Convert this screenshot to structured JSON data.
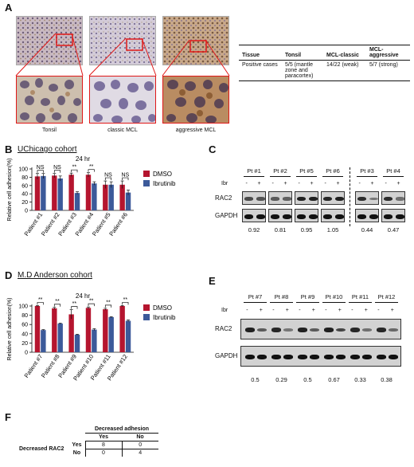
{
  "panels": {
    "a": "A",
    "b": "B",
    "c": "C",
    "d": "D",
    "e": "E",
    "f": "F"
  },
  "panel_a": {
    "images": [
      {
        "caption": "Tonsil"
      },
      {
        "caption": "classic MCL"
      },
      {
        "caption": "aggressive MCL"
      }
    ],
    "table": {
      "headers": [
        "Tissue",
        "Tonsil",
        "MCL-classic",
        "MCL-aggressive"
      ],
      "rows": [
        {
          "label": "Positive cases",
          "tonsil": "5/5 (mantle zone and paracortex)",
          "classic": "14/22 (weak)",
          "aggressive": "5/7 (strong)"
        }
      ]
    }
  },
  "chart_data": [
    {
      "type": "bar",
      "title": "UChicago cohort",
      "subtitle": "24 hr",
      "ylabel": "Relative cell adhesion(%)",
      "ylim": [
        0,
        100
      ],
      "yticks": [
        0,
        20,
        40,
        60,
        80,
        100
      ],
      "categories": [
        "Patient #1",
        "Patient #2",
        "Patient #3",
        "Patient #4",
        "Patient #5",
        "Patient #6"
      ],
      "series": [
        {
          "name": "DMSO",
          "color": "#b5152f",
          "values": [
            82,
            84,
            86,
            86,
            62,
            62
          ],
          "errors": [
            7,
            5,
            4,
            5,
            9,
            9
          ]
        },
        {
          "name": "Ibrutinib",
          "color": "#3c5a9a",
          "values": [
            83,
            77,
            42,
            65,
            62,
            43
          ],
          "errors": [
            6,
            6,
            3,
            4,
            7,
            6
          ]
        }
      ],
      "significance": [
        "NS",
        "NS",
        "**",
        "**",
        "NS",
        "NS"
      ],
      "legend": "right"
    },
    {
      "type": "bar",
      "title": "M.D Anderson cohort",
      "subtitle": "24 hr",
      "ylabel": "Relative cell adhesion(%)",
      "ylim": [
        0,
        100
      ],
      "yticks": [
        0,
        20,
        40,
        60,
        80,
        100
      ],
      "categories": [
        "Patient #7",
        "Patient #8",
        "Patient #9",
        "Patient #10",
        "Patient #11",
        "Patient #12"
      ],
      "series": [
        {
          "name": "DMSO",
          "color": "#b5152f",
          "values": [
            100,
            95,
            82,
            96,
            93,
            100
          ],
          "errors": [
            1,
            2,
            10,
            2,
            2,
            1
          ]
        },
        {
          "name": "Ibrutinib",
          "color": "#3c5a9a",
          "values": [
            48,
            62,
            38,
            49,
            76,
            68
          ],
          "errors": [
            1,
            1,
            1,
            2,
            1,
            2
          ]
        }
      ],
      "significance": [
        "**",
        "**",
        "**",
        "**",
        "**",
        "**"
      ],
      "legend": "right"
    }
  ],
  "panel_c": {
    "treatment_label": "Ibr",
    "minus": "-",
    "plus": "+",
    "row_labels": [
      "RAC2",
      "GAPDH"
    ],
    "patients": [
      {
        "name": "Pt #1",
        "ratio": "0.92"
      },
      {
        "name": "Pt #2",
        "ratio": "0.81"
      },
      {
        "name": "Pt #5",
        "ratio": "0.95"
      },
      {
        "name": "Pt #6",
        "ratio": "1.05"
      },
      {
        "name": "Pt #3",
        "ratio": "0.44"
      },
      {
        "name": "Pt #4",
        "ratio": "0.47"
      }
    ]
  },
  "panel_e": {
    "treatment_label": "Ibr",
    "minus": "-",
    "plus": "+",
    "row_labels": [
      "RAC2",
      "GAPDH"
    ],
    "patients": [
      {
        "name": "Pt #7",
        "ratio": "0.5"
      },
      {
        "name": "Pt #8",
        "ratio": "0.29"
      },
      {
        "name": "Pt #9",
        "ratio": "0.5"
      },
      {
        "name": "Pt #10",
        "ratio": "0.67"
      },
      {
        "name": "Pt #11",
        "ratio": "0.33"
      },
      {
        "name": "Pt #12",
        "ratio": "0.38"
      }
    ]
  },
  "panel_f": {
    "col_header": "Decreased adhesion",
    "row_header": "Decreased RAC2",
    "cols": [
      "Yes",
      "No"
    ],
    "rows": [
      {
        "label": "Yes",
        "values": [
          "8",
          "0"
        ]
      },
      {
        "label": "No",
        "values": [
          "0",
          "4"
        ]
      }
    ]
  }
}
